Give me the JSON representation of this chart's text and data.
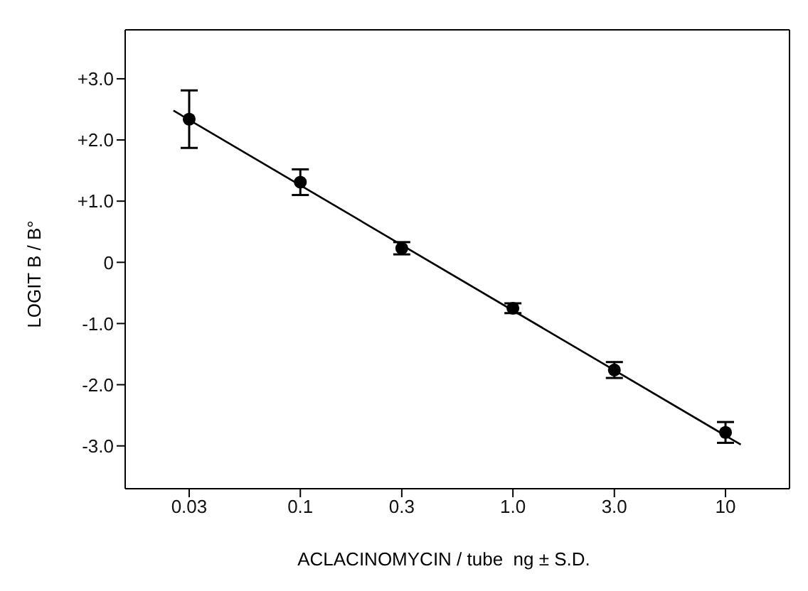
{
  "chart_data": {
    "type": "scatter",
    "xlabel": "ACLACINOMYCIN / tube  ng ± S.D.",
    "ylabel": "LOGIT  B / B°",
    "log": "x",
    "marker": "circle",
    "xlim": [
      0.015,
      20
    ],
    "xticks": [
      0.03,
      0.1,
      0.3,
      {
        "value": 1,
        "label": "1.0"
      },
      {
        "value": 3,
        "label": "3.0"
      },
      10
    ],
    "ylim": [
      -3.7,
      3.8
    ],
    "yticks": [
      {
        "value": 3,
        "label": "+3.0"
      },
      {
        "value": 2,
        "label": "+2.0"
      },
      {
        "value": 1,
        "label": "+1.0"
      },
      0,
      {
        "value": -1,
        "label": "-1.0"
      },
      {
        "value": -2,
        "label": "-2.0"
      },
      {
        "value": -3,
        "label": "-3.0"
      }
    ],
    "series": [
      {
        "color": "#000000",
        "x": [
          0.03,
          0.1,
          0.3,
          1,
          3,
          10
        ],
        "values": [
          2.34,
          1.31,
          0.23,
          -0.75,
          -1.76,
          -2.78
        ],
        "errors": [
          0.47,
          0.21,
          0.1,
          0.08,
          0.13,
          0.17
        ]
      },
      {
        "type": "line",
        "color": "#000000",
        "marker": "none",
        "line_style": "solid",
        "x": [
          0.0253,
          11.8
        ],
        "values": [
          2.48,
          -2.98
        ]
      }
    ]
  }
}
